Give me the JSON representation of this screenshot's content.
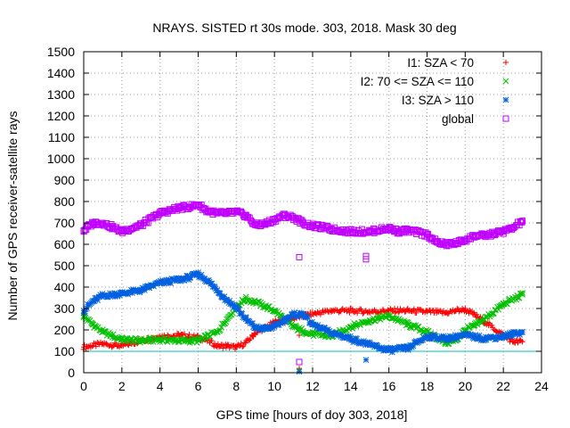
{
  "chart_data": {
    "type": "scatter",
    "title": "NRAYS. SISTED rt 30s mode. 303, 2018. Mask 30 deg",
    "xlabel": "GPS time [hours of doy 303, 2018]",
    "ylabel": "Number of GPS receiver-satellite rays",
    "xlim": [
      0,
      24
    ],
    "ylim": [
      0,
      1500
    ],
    "xticks": [
      0,
      2,
      4,
      6,
      8,
      10,
      12,
      14,
      16,
      18,
      20,
      22,
      24
    ],
    "yticks": [
      0,
      100,
      200,
      300,
      400,
      500,
      600,
      700,
      800,
      900,
      1000,
      1100,
      1200,
      1300,
      1400,
      1500
    ],
    "grid": true,
    "legend_position": "top-right",
    "reference_line": {
      "y": 100,
      "color": "#00c0c0"
    },
    "series": [
      {
        "name": "I1: SZA < 70",
        "marker": "plus",
        "color": "#ff0000",
        "x": [
          0,
          1,
          2,
          3,
          4,
          5,
          6,
          6.5,
          7,
          7.5,
          8,
          8.5,
          9,
          10,
          11,
          12,
          13,
          14,
          15,
          16,
          17,
          18,
          19,
          19.5,
          20,
          20.5,
          21,
          22,
          22.5,
          23
        ],
        "y": [
          120,
          135,
          125,
          150,
          170,
          175,
          165,
          150,
          125,
          125,
          118,
          140,
          185,
          235,
          255,
          275,
          290,
          290,
          285,
          290,
          290,
          285,
          280,
          290,
          295,
          270,
          240,
          175,
          145,
          145
        ],
        "outliers": [
          [
            11.3,
            175
          ],
          [
            11.3,
            20
          ]
        ]
      },
      {
        "name": "I2: 70 <= SZA <= 110",
        "marker": "cross",
        "color": "#00c000",
        "x": [
          0,
          0.5,
          1,
          2,
          3,
          4,
          5,
          6,
          7,
          7.5,
          8,
          8.5,
          9,
          10,
          11,
          11.5,
          12,
          13,
          14,
          15,
          16,
          17,
          18,
          19,
          19.5,
          20,
          20.5,
          21,
          22,
          23
        ],
        "y": [
          265,
          225,
          190,
          155,
          150,
          155,
          150,
          150,
          190,
          250,
          310,
          345,
          330,
          290,
          215,
          195,
          180,
          170,
          215,
          245,
          265,
          225,
          190,
          140,
          150,
          200,
          220,
          250,
          320,
          365
        ],
        "outliers": [
          [
            11.3,
            10
          ]
        ]
      },
      {
        "name": "I3: SZA > 110",
        "marker": "star",
        "color": "#0060e0",
        "x": [
          0,
          0.5,
          1,
          2,
          3,
          4,
          5,
          5.5,
          6,
          6.5,
          7,
          7.5,
          8,
          8.5,
          9,
          9.5,
          10,
          10.5,
          11,
          11.5,
          12,
          12.5,
          13,
          14,
          15,
          16,
          17,
          18,
          19,
          20,
          21,
          22,
          23
        ],
        "y": [
          290,
          335,
          360,
          370,
          385,
          420,
          435,
          445,
          460,
          430,
          385,
          340,
          305,
          250,
          210,
          205,
          215,
          245,
          270,
          275,
          225,
          205,
          185,
          160,
          130,
          105,
          115,
          170,
          160,
          175,
          160,
          170,
          190
        ],
        "outliers": [
          [
            14.8,
            60
          ],
          [
            11.3,
            5
          ]
        ]
      },
      {
        "name": "global",
        "marker": "square",
        "color": "#c000ff",
        "x": [
          0,
          0.5,
          1,
          1.5,
          2,
          3,
          4,
          5,
          5.5,
          6,
          6.5,
          7,
          7.5,
          8,
          8.5,
          9,
          9.5,
          10,
          10.5,
          11,
          11.5,
          12,
          12.5,
          13,
          14,
          15,
          16,
          16.5,
          17,
          18,
          18.5,
          19,
          19.5,
          20,
          20.5,
          21,
          22,
          22.5,
          23
        ],
        "y": [
          665,
          700,
          700,
          680,
          660,
          690,
          745,
          770,
          775,
          785,
          755,
          745,
          745,
          750,
          735,
          690,
          695,
          715,
          735,
          725,
          700,
          685,
          680,
          670,
          660,
          660,
          675,
          660,
          665,
          645,
          610,
          600,
          605,
          620,
          640,
          640,
          660,
          675,
          710
        ],
        "outliers": [
          [
            11.3,
            540
          ],
          [
            14.8,
            530
          ],
          [
            14.8,
            545
          ],
          [
            11.3,
            50
          ]
        ]
      }
    ]
  }
}
